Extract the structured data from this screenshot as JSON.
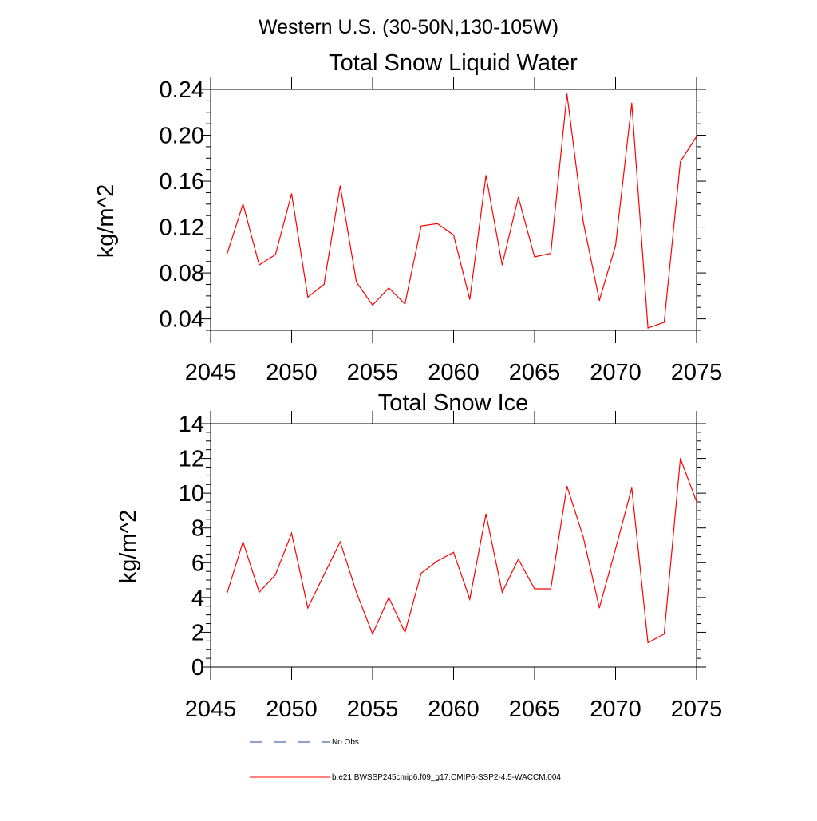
{
  "figure_title": "Western U.S. (30-50N,130-105W)",
  "colors": {
    "series": "#ff0000",
    "obs": "#1f3d99",
    "axis": "#000000"
  },
  "legend": {
    "obs_label": "No Obs",
    "model_label": "b.e21.BWSSP245cmip6.f09_g17.CMIP6-SSP2-4.5-WACCM.004"
  },
  "chart_data": [
    {
      "type": "line",
      "title": "Total Snow Liquid Water",
      "xlabel": "",
      "ylabel": "kg/m^2",
      "xlim": [
        2045,
        2075
      ],
      "ylim": [
        0.03,
        0.24
      ],
      "xticks": [
        2045,
        2050,
        2055,
        2060,
        2065,
        2070,
        2075
      ],
      "yticks": [
        0.04,
        0.08,
        0.12,
        0.16,
        0.2,
        0.24
      ],
      "ytick_labels": [
        "0.04",
        "0.08",
        "0.12",
        "0.16",
        "0.20",
        "0.24"
      ],
      "grid": false,
      "series": [
        {
          "name": "b.e21.BWSSP245cmip6.f09_g17.CMIP6-SSP2-4.5-WACCM.004",
          "x": [
            2046,
            2047,
            2048,
            2049,
            2050,
            2051,
            2052,
            2053,
            2054,
            2055,
            2056,
            2057,
            2058,
            2059,
            2060,
            2061,
            2062,
            2063,
            2064,
            2065,
            2066,
            2067,
            2068,
            2069,
            2070,
            2071,
            2072,
            2073,
            2074,
            2075
          ],
          "values": [
            0.096,
            0.14,
            0.087,
            0.096,
            0.149,
            0.059,
            0.07,
            0.156,
            0.072,
            0.052,
            0.067,
            0.053,
            0.121,
            0.123,
            0.113,
            0.057,
            0.165,
            0.087,
            0.146,
            0.094,
            0.097,
            0.236,
            0.125,
            0.056,
            0.104,
            0.228,
            0.032,
            0.037,
            0.177,
            0.199
          ]
        }
      ]
    },
    {
      "type": "line",
      "title": "Total Snow Ice",
      "xlabel": "",
      "ylabel": "kg/m^2",
      "xlim": [
        2045,
        2075
      ],
      "ylim": [
        0,
        14
      ],
      "xticks": [
        2045,
        2050,
        2055,
        2060,
        2065,
        2070,
        2075
      ],
      "yticks": [
        0,
        2,
        4,
        6,
        8,
        10,
        12,
        14
      ],
      "ytick_labels": [
        "0",
        "2",
        "4",
        "6",
        "8",
        "10",
        "12",
        "14"
      ],
      "grid": false,
      "series": [
        {
          "name": "b.e21.BWSSP245cmip6.f09_g17.CMIP6-SSP2-4.5-WACCM.004",
          "x": [
            2046,
            2047,
            2048,
            2049,
            2050,
            2051,
            2052,
            2053,
            2054,
            2055,
            2056,
            2057,
            2058,
            2059,
            2060,
            2061,
            2062,
            2063,
            2064,
            2065,
            2066,
            2067,
            2068,
            2069,
            2070,
            2071,
            2072,
            2073,
            2074,
            2075
          ],
          "values": [
            4.2,
            7.2,
            4.3,
            5.3,
            7.7,
            3.4,
            5.3,
            7.2,
            4.3,
            1.9,
            4.0,
            2.0,
            5.4,
            6.1,
            6.6,
            3.9,
            8.8,
            4.3,
            6.2,
            4.5,
            4.5,
            10.4,
            7.5,
            3.4,
            6.8,
            10.3,
            1.4,
            1.9,
            12.0,
            9.5
          ]
        }
      ]
    }
  ]
}
